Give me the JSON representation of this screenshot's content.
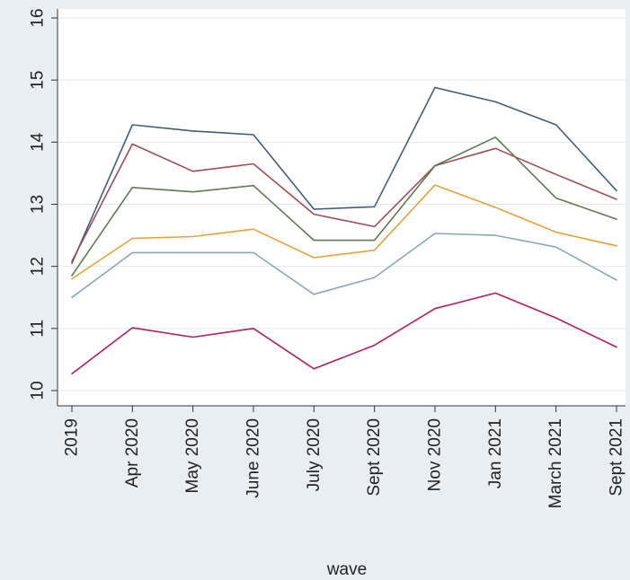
{
  "chart_data": {
    "type": "line",
    "xlabel": "wave",
    "ylabel": "",
    "categories": [
      "2019",
      "Apr 2020",
      "May 2020",
      "June 2020",
      "July 2020",
      "Sept 2020",
      "Nov 2020",
      "Jan 2021",
      "March 2021",
      "Sept 2021"
    ],
    "ylim": [
      10,
      16
    ],
    "yticks": [
      10,
      11,
      12,
      13,
      14,
      15,
      16
    ],
    "grid": "horizontal",
    "legend": "none",
    "series": [
      {
        "color": "#3f5f78",
        "values": [
          12.05,
          14.28,
          14.18,
          14.12,
          12.92,
          12.96,
          14.88,
          14.65,
          14.28,
          13.22
        ]
      },
      {
        "color": "#a04b58",
        "values": [
          12.08,
          13.97,
          13.53,
          13.65,
          12.84,
          12.64,
          13.62,
          13.9,
          13.48,
          13.08
        ]
      },
      {
        "color": "#5e7a52",
        "values": [
          11.85,
          13.27,
          13.2,
          13.3,
          12.42,
          12.42,
          13.62,
          14.08,
          13.1,
          12.76
        ]
      },
      {
        "color": "#e6a23a",
        "values": [
          11.8,
          12.45,
          12.48,
          12.6,
          12.14,
          12.26,
          13.31,
          12.95,
          12.55,
          12.33
        ]
      },
      {
        "color": "#8aa9b3",
        "values": [
          11.5,
          12.22,
          12.22,
          12.22,
          11.55,
          11.82,
          12.53,
          12.5,
          12.31,
          11.78
        ]
      },
      {
        "color": "#b51f4e",
        "values": [
          10.27,
          11.01,
          10.86,
          11.0,
          10.35,
          10.73,
          11.32,
          11.57,
          11.17,
          10.7
        ]
      }
    ]
  }
}
